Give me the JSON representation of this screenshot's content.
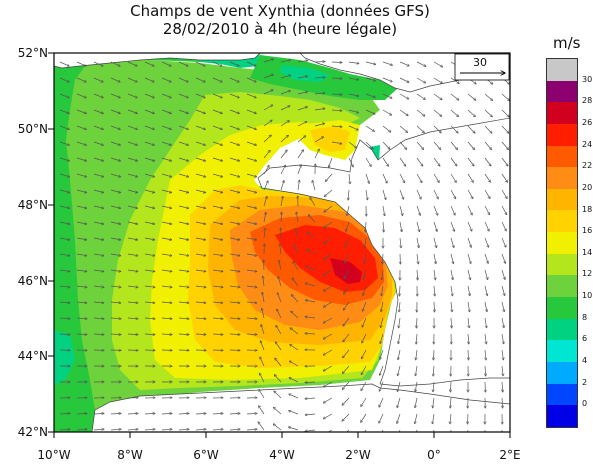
{
  "header": {
    "title_line1": "Champs de vent Xynthia (données GFS)",
    "title_line2": "28/02/2010 à 4h (heure légale)"
  },
  "legend": {
    "units": "m/s",
    "entries": [
      {
        "label": "30",
        "color": "#c8c8c8"
      },
      {
        "label": "28",
        "color": "#8b006e"
      },
      {
        "label": "26",
        "color": "#d2001e"
      },
      {
        "label": "24",
        "color": "#ff1e00"
      },
      {
        "label": "22",
        "color": "#ff5a00"
      },
      {
        "label": "20",
        "color": "#ff8c14"
      },
      {
        "label": "18",
        "color": "#ffb400"
      },
      {
        "label": "16",
        "color": "#ffd200"
      },
      {
        "label": "14",
        "color": "#f0f000"
      },
      {
        "label": "12",
        "color": "#b4e61e"
      },
      {
        "label": "10",
        "color": "#6ed23c"
      },
      {
        "label": "8",
        "color": "#28c83c"
      },
      {
        "label": "6",
        "color": "#00d282"
      },
      {
        "label": "4",
        "color": "#00e6d2"
      },
      {
        "label": "2",
        "color": "#00aaff"
      },
      {
        "label": "0",
        "color": "#0046ff"
      },
      {
        "label": "",
        "color": "#0000e6"
      }
    ]
  },
  "reference_vector": {
    "label": "30"
  },
  "axes": {
    "lat_labels": [
      "52°N",
      "50°N",
      "48°N",
      "46°N",
      "44°N",
      "42°N"
    ],
    "lon_labels": [
      "10°W",
      "8°W",
      "6°W",
      "4°W",
      "2°W",
      "0°",
      "2°E"
    ]
  }
}
